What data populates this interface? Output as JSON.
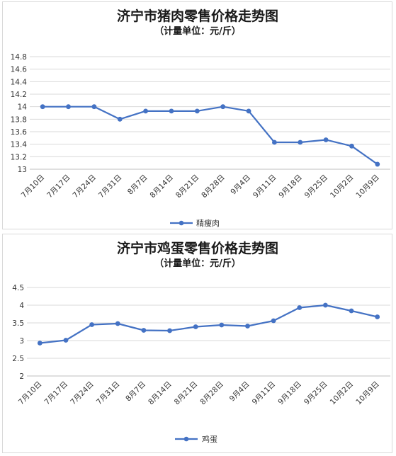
{
  "chart_data": [
    {
      "type": "line",
      "title": "济宁市猪肉零售价格走势图",
      "subtitle": "（计量单位：元/斤）",
      "categories": [
        "7月10日",
        "7月17日",
        "7月24日",
        "7月31日",
        "8月7日",
        "8月14日",
        "8月21日",
        "8月28日",
        "9月4日",
        "9月11日",
        "9月18日",
        "9月25日",
        "10月2日",
        "10月9日"
      ],
      "series": [
        {
          "name": "精瘦肉",
          "values": [
            14.0,
            14.0,
            14.0,
            13.8,
            13.93,
            13.93,
            13.93,
            14.0,
            13.93,
            13.43,
            13.43,
            13.47,
            13.37,
            13.08
          ]
        }
      ],
      "yticks": [
        "13",
        "13.2",
        "13.4",
        "13.6",
        "13.8",
        "14",
        "14.2",
        "14.4",
        "14.6",
        "14.8"
      ],
      "ylim": [
        13,
        14.8
      ],
      "grid": true,
      "legend_position": "bottom",
      "color": "#4472c4"
    },
    {
      "type": "line",
      "title": "济宁市鸡蛋零售价格走势图",
      "subtitle": "（计量单位：元/斤）",
      "categories": [
        "7月10日",
        "7月17日",
        "7月24日",
        "7月31日",
        "8月7日",
        "8月14日",
        "8月21日",
        "8月28日",
        "9月4日",
        "9月11日",
        "9月18日",
        "9月25日",
        "10月2日",
        "10月9日"
      ],
      "series": [
        {
          "name": "鸡蛋",
          "values": [
            2.93,
            3.01,
            3.45,
            3.48,
            3.29,
            3.28,
            3.39,
            3.44,
            3.41,
            3.56,
            3.93,
            4.0,
            3.84,
            3.67
          ]
        }
      ],
      "yticks": [
        "2",
        "2.5",
        "3",
        "3.5",
        "4",
        "4.5"
      ],
      "ylim": [
        2,
        4.5
      ],
      "grid": true,
      "legend_position": "bottom",
      "color": "#4472c4"
    }
  ]
}
